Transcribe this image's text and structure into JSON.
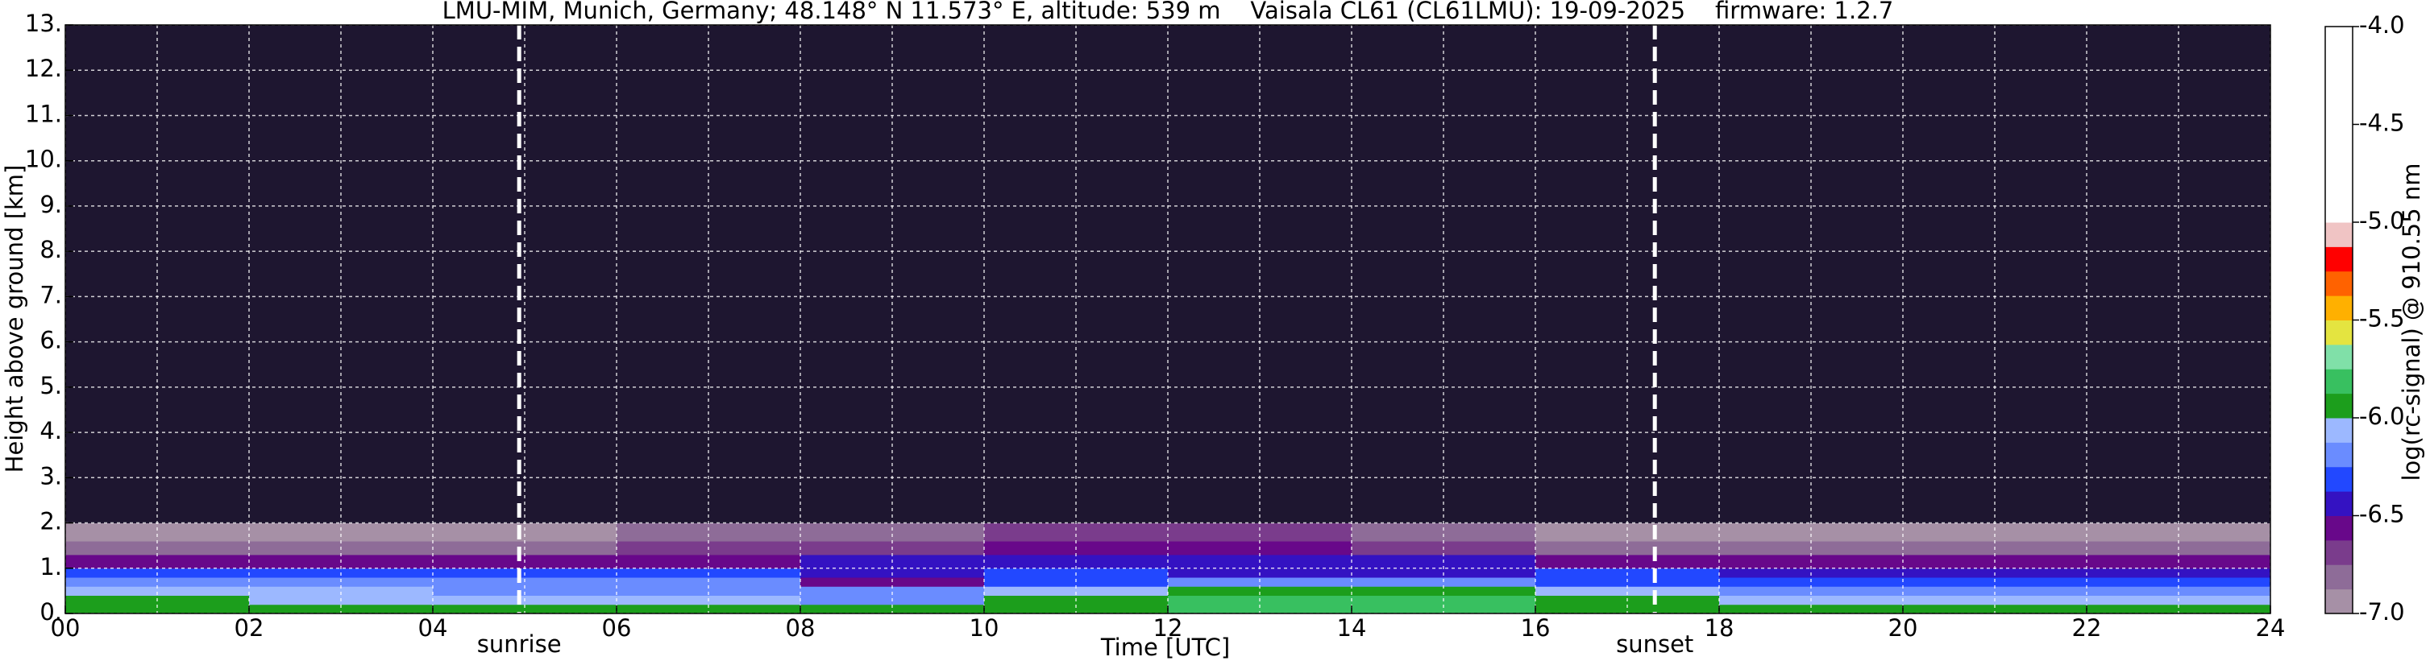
{
  "chart_data": {
    "type": "heatmap",
    "title": "LMU-MIM, Munich, Germany; 48.148° N 11.573° E, altitude: 539 m    Vaisala CL61 (CL61LMU): 19-09-2025    firmware: 1.2.7",
    "xlabel": "Time [UTC]",
    "ylabel": "Height above ground [km]",
    "colorbar_label": "log(rc-signal) @ 910.55 nm",
    "xlim": [
      0,
      24
    ],
    "ylim": [
      0,
      13
    ],
    "xticks": [
      {
        "value": 0,
        "label": "00"
      },
      {
        "value": 2,
        "label": "02"
      },
      {
        "value": 4,
        "label": "04"
      },
      {
        "value": 6,
        "label": "06"
      },
      {
        "value": 8,
        "label": "08"
      },
      {
        "value": 10,
        "label": "10"
      },
      {
        "value": 12,
        "label": "12"
      },
      {
        "value": 14,
        "label": "14"
      },
      {
        "value": 16,
        "label": "16"
      },
      {
        "value": 18,
        "label": "18"
      },
      {
        "value": 20,
        "label": "20"
      },
      {
        "value": 22,
        "label": "22"
      },
      {
        "value": 24,
        "label": "24"
      }
    ],
    "xminorticks": [
      1,
      3,
      5,
      7,
      9,
      11,
      13,
      15,
      17,
      19,
      21,
      23
    ],
    "yticks": [
      {
        "value": 0,
        "label": "0."
      },
      {
        "value": 1,
        "label": "1."
      },
      {
        "value": 2,
        "label": "2."
      },
      {
        "value": 3,
        "label": "3."
      },
      {
        "value": 4,
        "label": "4."
      },
      {
        "value": 5,
        "label": "5."
      },
      {
        "value": 6,
        "label": "6."
      },
      {
        "value": 7,
        "label": "7."
      },
      {
        "value": 8,
        "label": "8."
      },
      {
        "value": 9,
        "label": "9."
      },
      {
        "value": 10,
        "label": "10."
      },
      {
        "value": 11,
        "label": "11."
      },
      {
        "value": 12,
        "label": "12."
      },
      {
        "value": 13,
        "label": "13."
      }
    ],
    "grid": true,
    "x_edges": [
      0,
      2,
      4,
      6,
      8,
      10,
      12,
      14,
      16,
      18,
      20,
      22,
      24
    ],
    "y_edges": [
      0,
      0.2,
      0.4,
      0.6,
      0.8,
      1.0,
      1.3,
      1.6,
      2.0,
      3.0,
      13.0
    ],
    "z": [
      [
        -5.9,
        -5.95,
        -6.0,
        -6.0,
        -6.0,
        -5.9,
        -5.8,
        -5.8,
        -5.9,
        -5.95,
        -5.9,
        -5.9
      ],
      [
        -6.0,
        -6.1,
        -6.1,
        -6.1,
        -6.15,
        -6.0,
        -5.8,
        -5.8,
        -6.0,
        -6.1,
        -6.1,
        -6.05
      ],
      [
        -6.1,
        -6.1,
        -6.15,
        -6.15,
        -6.2,
        -6.1,
        -5.9,
        -5.9,
        -6.1,
        -6.15,
        -6.15,
        -6.15
      ],
      [
        -6.15,
        -6.15,
        -6.2,
        -6.2,
        -6.6,
        -6.3,
        -6.2,
        -6.2,
        -6.3,
        -6.3,
        -6.35,
        -6.3
      ],
      [
        -6.35,
        -6.35,
        -6.3,
        -6.3,
        -6.4,
        -6.35,
        -6.4,
        -6.4,
        -6.35,
        -6.4,
        -6.45,
        -6.4
      ],
      [
        -6.55,
        -6.55,
        -6.55,
        -6.6,
        -6.5,
        -6.45,
        -6.4,
        -6.45,
        -6.6,
        -6.6,
        -6.6,
        -6.6
      ],
      [
        -6.85,
        -6.8,
        -6.8,
        -6.75,
        -6.7,
        -6.6,
        -6.55,
        -6.7,
        -6.8,
        -6.8,
        -6.8,
        -6.8
      ],
      [
        -6.9,
        -6.9,
        -6.9,
        -6.85,
        -6.8,
        -6.75,
        -6.75,
        -6.85,
        -6.9,
        -6.9,
        -6.9,
        -6.9
      ],
      [
        -7.05,
        -7.05,
        -7.05,
        -7.05,
        -7.05,
        -7.05,
        -7.05,
        -7.05,
        -7.05,
        -7.05,
        -7.05,
        -7.05
      ],
      [
        -7.2,
        -7.2,
        -7.2,
        -7.2,
        -7.2,
        -7.2,
        -7.2,
        -7.2,
        -7.2,
        -7.2,
        -7.2,
        -7.2
      ]
    ],
    "colorbar_lim": [
      -7.0,
      -4.0
    ],
    "colorbar_ticks": [
      {
        "value": -4.0,
        "label": "-4.0"
      },
      {
        "value": -4.5,
        "label": "-4.5"
      },
      {
        "value": -5.0,
        "label": "-5.0"
      },
      {
        "value": -5.5,
        "label": "-5.5"
      },
      {
        "value": -6.0,
        "label": "-6.0"
      },
      {
        "value": -6.5,
        "label": "-6.5"
      },
      {
        "value": -7.0,
        "label": "-7.0"
      }
    ],
    "color_bounds": [
      -7.0,
      -6.875,
      -6.75,
      -6.625,
      -6.5,
      -6.375,
      -6.25,
      -6.125,
      -6.0,
      -5.875,
      -5.75,
      -5.625,
      -5.5,
      -5.375,
      -5.25,
      -5.125,
      -5.0,
      -4.0
    ],
    "color_list": [
      "#a690a6",
      "#8e6c98",
      "#7a3c8c",
      "#68088a",
      "#3412c2",
      "#2248ff",
      "#6a8cff",
      "#9cb8ff",
      "#1c9e1c",
      "#38c060",
      "#80e0a8",
      "#e4e440",
      "#ffb000",
      "#ff6200",
      "#ff0000",
      "#f0c4c4",
      "#ffffff"
    ],
    "under_color": "#1e1630",
    "annotations": [
      {
        "x": 4.94,
        "label": "sunrise"
      },
      {
        "x": 17.3,
        "label": "sunset"
      }
    ]
  }
}
